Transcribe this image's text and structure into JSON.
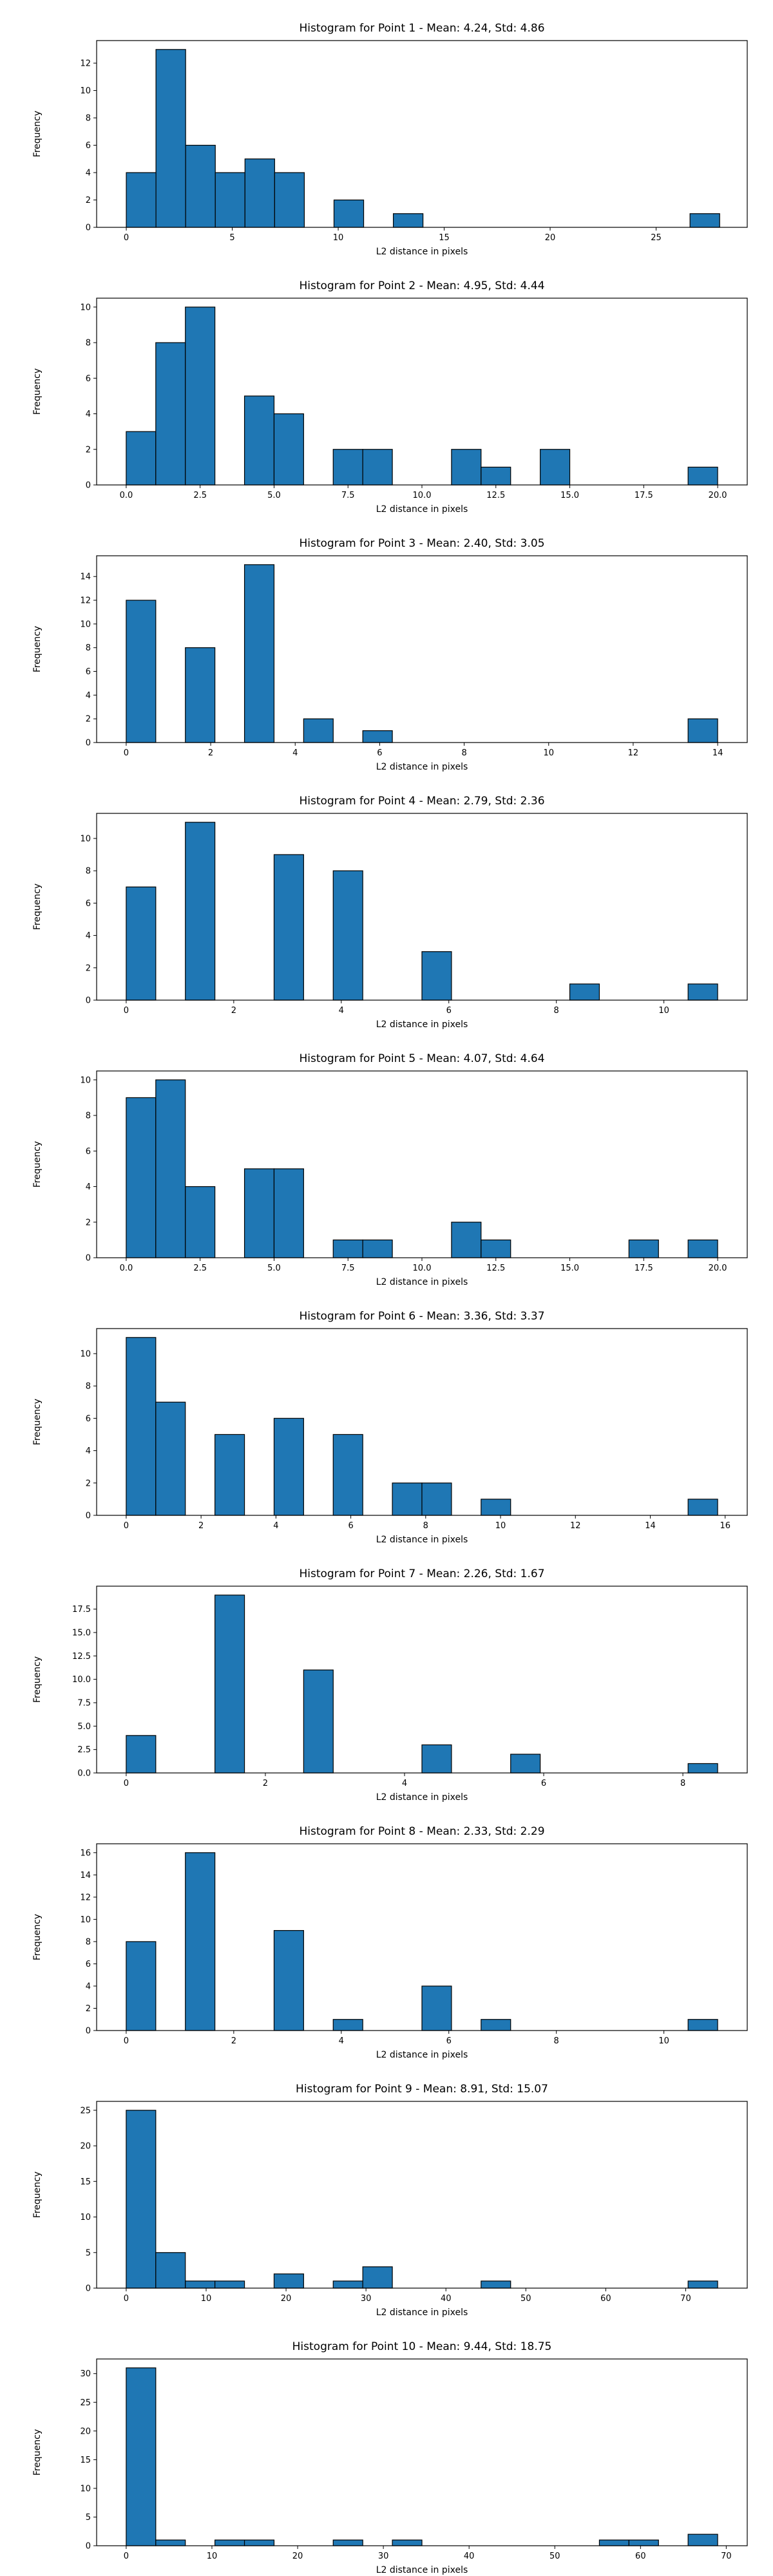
{
  "chart_data": [
    {
      "type": "histogram",
      "title": "Histogram for Point 1 - Mean: 4.24, Std: 4.86",
      "xlabel": "L2 distance in pixels",
      "ylabel": "Frequency",
      "bar_color": "#1f77b4",
      "edge_color": "#000000",
      "grid": false,
      "xlim": [
        -1.4,
        29.3
      ],
      "ylim": [
        0,
        13.65
      ],
      "x_ticks": [
        0,
        5,
        10,
        15,
        20,
        25
      ],
      "x_tick_labels": [
        "0",
        "5",
        "10",
        "15",
        "20",
        "25"
      ],
      "y_ticks": [
        0,
        2,
        4,
        6,
        8,
        10,
        12
      ],
      "y_tick_labels": [
        "0",
        "2",
        "4",
        "6",
        "8",
        "10",
        "12"
      ],
      "bins": [
        {
          "x0": 0.0,
          "x1": 1.4,
          "count": 4
        },
        {
          "x0": 1.4,
          "x1": 2.8,
          "count": 13
        },
        {
          "x0": 2.8,
          "x1": 4.2,
          "count": 6
        },
        {
          "x0": 4.2,
          "x1": 5.6,
          "count": 4
        },
        {
          "x0": 5.6,
          "x1": 7.0,
          "count": 5
        },
        {
          "x0": 7.0,
          "x1": 8.4,
          "count": 4
        },
        {
          "x0": 9.8,
          "x1": 11.2,
          "count": 2
        },
        {
          "x0": 12.6,
          "x1": 14.0,
          "count": 1
        },
        {
          "x0": 26.6,
          "x1": 28.0,
          "count": 1
        }
      ]
    },
    {
      "type": "histogram",
      "title": "Histogram for Point 2 - Mean: 4.95, Std: 4.44",
      "xlabel": "L2 distance in pixels",
      "ylabel": "Frequency",
      "bar_color": "#1f77b4",
      "edge_color": "#000000",
      "grid": false,
      "xlim": [
        -1.0,
        21.0
      ],
      "ylim": [
        0,
        10.5
      ],
      "x_ticks": [
        0,
        2.5,
        5,
        7.5,
        10,
        12.5,
        15,
        17.5,
        20
      ],
      "x_tick_labels": [
        "0.0",
        "2.5",
        "5.0",
        "7.5",
        "10.0",
        "12.5",
        "15.0",
        "17.5",
        "20.0"
      ],
      "y_ticks": [
        0,
        2,
        4,
        6,
        8,
        10
      ],
      "y_tick_labels": [
        "0",
        "2",
        "4",
        "6",
        "8",
        "10"
      ],
      "bins": [
        {
          "x0": 0.0,
          "x1": 1.0,
          "count": 3
        },
        {
          "x0": 1.0,
          "x1": 2.0,
          "count": 8
        },
        {
          "x0": 2.0,
          "x1": 3.0,
          "count": 10
        },
        {
          "x0": 4.0,
          "x1": 5.0,
          "count": 5
        },
        {
          "x0": 5.0,
          "x1": 6.0,
          "count": 4
        },
        {
          "x0": 7.0,
          "x1": 8.0,
          "count": 2
        },
        {
          "x0": 8.0,
          "x1": 9.0,
          "count": 2
        },
        {
          "x0": 11.0,
          "x1": 12.0,
          "count": 2
        },
        {
          "x0": 12.0,
          "x1": 13.0,
          "count": 1
        },
        {
          "x0": 14.0,
          "x1": 15.0,
          "count": 2
        },
        {
          "x0": 19.0,
          "x1": 20.0,
          "count": 1
        }
      ]
    },
    {
      "type": "histogram",
      "title": "Histogram for Point 3 - Mean: 2.40, Std: 3.05",
      "xlabel": "L2 distance in pixels",
      "ylabel": "Frequency",
      "bar_color": "#1f77b4",
      "edge_color": "#000000",
      "grid": false,
      "xlim": [
        -0.7,
        14.7
      ],
      "ylim": [
        0,
        15.75
      ],
      "x_ticks": [
        0,
        2,
        4,
        6,
        8,
        10,
        12,
        14
      ],
      "x_tick_labels": [
        "0",
        "2",
        "4",
        "6",
        "8",
        "10",
        "12",
        "14"
      ],
      "y_ticks": [
        0,
        2,
        4,
        6,
        8,
        10,
        12,
        14
      ],
      "y_tick_labels": [
        "0",
        "2",
        "4",
        "6",
        "8",
        "10",
        "12",
        "14"
      ],
      "bins": [
        {
          "x0": 0.0,
          "x1": 0.7,
          "count": 12
        },
        {
          "x0": 1.4,
          "x1": 2.1,
          "count": 8
        },
        {
          "x0": 2.8,
          "x1": 3.5,
          "count": 15
        },
        {
          "x0": 4.2,
          "x1": 4.9,
          "count": 2
        },
        {
          "x0": 5.6,
          "x1": 6.3,
          "count": 1
        },
        {
          "x0": 13.3,
          "x1": 14.0,
          "count": 2
        }
      ]
    },
    {
      "type": "histogram",
      "title": "Histogram for Point 4 - Mean: 2.79, Std: 2.36",
      "xlabel": "L2 distance in pixels",
      "ylabel": "Frequency",
      "bar_color": "#1f77b4",
      "edge_color": "#000000",
      "grid": false,
      "xlim": [
        -0.55,
        11.55
      ],
      "ylim": [
        0,
        11.55
      ],
      "x_ticks": [
        0,
        2,
        4,
        6,
        8,
        10
      ],
      "x_tick_labels": [
        "0",
        "2",
        "4",
        "6",
        "8",
        "10"
      ],
      "y_ticks": [
        0,
        2,
        4,
        6,
        8,
        10
      ],
      "y_tick_labels": [
        "0",
        "2",
        "4",
        "6",
        "8",
        "10"
      ],
      "bins": [
        {
          "x0": 0.0,
          "x1": 0.55,
          "count": 7
        },
        {
          "x0": 1.1,
          "x1": 1.65,
          "count": 11
        },
        {
          "x0": 2.75,
          "x1": 3.3,
          "count": 9
        },
        {
          "x0": 3.85,
          "x1": 4.4,
          "count": 8
        },
        {
          "x0": 5.5,
          "x1": 6.05,
          "count": 3
        },
        {
          "x0": 8.25,
          "x1": 8.8,
          "count": 1
        },
        {
          "x0": 10.45,
          "x1": 11.0,
          "count": 1
        }
      ]
    },
    {
      "type": "histogram",
      "title": "Histogram for Point 5 - Mean: 4.07, Std: 4.64",
      "xlabel": "L2 distance in pixels",
      "ylabel": "Frequency",
      "bar_color": "#1f77b4",
      "edge_color": "#000000",
      "grid": false,
      "xlim": [
        -1.0,
        21.0
      ],
      "ylim": [
        0,
        10.5
      ],
      "x_ticks": [
        0,
        2.5,
        5,
        7.5,
        10,
        12.5,
        15,
        17.5,
        20
      ],
      "x_tick_labels": [
        "0.0",
        "2.5",
        "5.0",
        "7.5",
        "10.0",
        "12.5",
        "15.0",
        "17.5",
        "20.0"
      ],
      "y_ticks": [
        0,
        2,
        4,
        6,
        8,
        10
      ],
      "y_tick_labels": [
        "0",
        "2",
        "4",
        "6",
        "8",
        "10"
      ],
      "bins": [
        {
          "x0": 0.0,
          "x1": 1.0,
          "count": 9
        },
        {
          "x0": 1.0,
          "x1": 2.0,
          "count": 10
        },
        {
          "x0": 2.0,
          "x1": 3.0,
          "count": 4
        },
        {
          "x0": 4.0,
          "x1": 5.0,
          "count": 5
        },
        {
          "x0": 5.0,
          "x1": 6.0,
          "count": 5
        },
        {
          "x0": 7.0,
          "x1": 8.0,
          "count": 1
        },
        {
          "x0": 8.0,
          "x1": 9.0,
          "count": 1
        },
        {
          "x0": 11.0,
          "x1": 12.0,
          "count": 2
        },
        {
          "x0": 12.0,
          "x1": 13.0,
          "count": 1
        },
        {
          "x0": 17.0,
          "x1": 18.0,
          "count": 1
        },
        {
          "x0": 19.0,
          "x1": 20.0,
          "count": 1
        }
      ]
    },
    {
      "type": "histogram",
      "title": "Histogram for Point 6 - Mean: 3.36, Std: 3.37",
      "xlabel": "L2 distance in pixels",
      "ylabel": "Frequency",
      "bar_color": "#1f77b4",
      "edge_color": "#000000",
      "grid": false,
      "xlim": [
        -0.79,
        16.59
      ],
      "ylim": [
        0,
        11.55
      ],
      "x_ticks": [
        0,
        2,
        4,
        6,
        8,
        10,
        12,
        14,
        16
      ],
      "x_tick_labels": [
        "0",
        "2",
        "4",
        "6",
        "8",
        "10",
        "12",
        "14",
        "16"
      ],
      "y_ticks": [
        0,
        2,
        4,
        6,
        8,
        10
      ],
      "y_tick_labels": [
        "0",
        "2",
        "4",
        "6",
        "8",
        "10"
      ],
      "bins": [
        {
          "x0": 0.0,
          "x1": 0.79,
          "count": 11
        },
        {
          "x0": 0.79,
          "x1": 1.58,
          "count": 7
        },
        {
          "x0": 2.37,
          "x1": 3.16,
          "count": 5
        },
        {
          "x0": 3.95,
          "x1": 4.74,
          "count": 6
        },
        {
          "x0": 5.53,
          "x1": 6.32,
          "count": 5
        },
        {
          "x0": 7.11,
          "x1": 7.9,
          "count": 2
        },
        {
          "x0": 7.9,
          "x1": 8.69,
          "count": 2
        },
        {
          "x0": 9.48,
          "x1": 10.27,
          "count": 1
        },
        {
          "x0": 15.01,
          "x1": 15.8,
          "count": 1
        }
      ]
    },
    {
      "type": "histogram",
      "title": "Histogram for Point 7 - Mean: 2.26, Std: 1.67",
      "xlabel": "L2 distance in pixels",
      "ylabel": "Frequency",
      "bar_color": "#1f77b4",
      "edge_color": "#000000",
      "grid": false,
      "xlim": [
        -0.425,
        8.925
      ],
      "ylim": [
        0,
        19.95
      ],
      "x_ticks": [
        0,
        2,
        4,
        6,
        8
      ],
      "x_tick_labels": [
        "0",
        "2",
        "4",
        "6",
        "8"
      ],
      "y_ticks": [
        0,
        2.5,
        5,
        7.5,
        10,
        12.5,
        15,
        17.5
      ],
      "y_tick_labels": [
        "0.0",
        "2.5",
        "5.0",
        "7.5",
        "10.0",
        "12.5",
        "15.0",
        "17.5"
      ],
      "bins": [
        {
          "x0": 0.0,
          "x1": 0.425,
          "count": 4
        },
        {
          "x0": 1.275,
          "x1": 1.7,
          "count": 19
        },
        {
          "x0": 2.55,
          "x1": 2.975,
          "count": 11
        },
        {
          "x0": 4.25,
          "x1": 4.675,
          "count": 3
        },
        {
          "x0": 5.525,
          "x1": 5.95,
          "count": 2
        },
        {
          "x0": 8.075,
          "x1": 8.5,
          "count": 1
        }
      ]
    },
    {
      "type": "histogram",
      "title": "Histogram for Point 8 - Mean: 2.33, Std: 2.29",
      "xlabel": "L2 distance in pixels",
      "ylabel": "Frequency",
      "bar_color": "#1f77b4",
      "edge_color": "#000000",
      "grid": false,
      "xlim": [
        -0.55,
        11.55
      ],
      "ylim": [
        0,
        16.8
      ],
      "x_ticks": [
        0,
        2,
        4,
        6,
        8,
        10
      ],
      "x_tick_labels": [
        "0",
        "2",
        "4",
        "6",
        "8",
        "10"
      ],
      "y_ticks": [
        0,
        2,
        4,
        6,
        8,
        10,
        12,
        14,
        16
      ],
      "y_tick_labels": [
        "0",
        "2",
        "4",
        "6",
        "8",
        "10",
        "12",
        "14",
        "16"
      ],
      "bins": [
        {
          "x0": 0.0,
          "x1": 0.55,
          "count": 8
        },
        {
          "x0": 1.1,
          "x1": 1.65,
          "count": 16
        },
        {
          "x0": 2.75,
          "x1": 3.3,
          "count": 9
        },
        {
          "x0": 3.85,
          "x1": 4.4,
          "count": 1
        },
        {
          "x0": 5.5,
          "x1": 6.05,
          "count": 4
        },
        {
          "x0": 6.6,
          "x1": 7.15,
          "count": 1
        },
        {
          "x0": 10.45,
          "x1": 11.0,
          "count": 1
        }
      ]
    },
    {
      "type": "histogram",
      "title": "Histogram for Point 9 - Mean: 8.91, Std: 15.07",
      "xlabel": "L2 distance in pixels",
      "ylabel": "Frequency",
      "bar_color": "#1f77b4",
      "edge_color": "#000000",
      "grid": false,
      "xlim": [
        -3.7,
        77.7
      ],
      "ylim": [
        0,
        26.25
      ],
      "x_ticks": [
        0,
        10,
        20,
        30,
        40,
        50,
        60,
        70
      ],
      "x_tick_labels": [
        "0",
        "10",
        "20",
        "30",
        "40",
        "50",
        "60",
        "70"
      ],
      "y_ticks": [
        0,
        5,
        10,
        15,
        20,
        25
      ],
      "y_tick_labels": [
        "0",
        "5",
        "10",
        "15",
        "20",
        "25"
      ],
      "bins": [
        {
          "x0": 0.0,
          "x1": 3.7,
          "count": 25
        },
        {
          "x0": 3.7,
          "x1": 7.4,
          "count": 5
        },
        {
          "x0": 7.4,
          "x1": 11.1,
          "count": 1
        },
        {
          "x0": 11.1,
          "x1": 14.8,
          "count": 1
        },
        {
          "x0": 18.5,
          "x1": 22.2,
          "count": 2
        },
        {
          "x0": 25.9,
          "x1": 29.6,
          "count": 1
        },
        {
          "x0": 29.6,
          "x1": 33.3,
          "count": 3
        },
        {
          "x0": 44.4,
          "x1": 48.1,
          "count": 1
        },
        {
          "x0": 70.3,
          "x1": 74.0,
          "count": 1
        }
      ]
    },
    {
      "type": "histogram",
      "title": "Histogram for Point 10 - Mean: 9.44, Std: 18.75",
      "xlabel": "L2 distance in pixels",
      "ylabel": "Frequency",
      "bar_color": "#1f77b4",
      "edge_color": "#000000",
      "grid": false,
      "xlim": [
        -3.45,
        72.45
      ],
      "ylim": [
        0,
        32.55
      ],
      "x_ticks": [
        0,
        10,
        20,
        30,
        40,
        50,
        60,
        70
      ],
      "x_tick_labels": [
        "0",
        "10",
        "20",
        "30",
        "40",
        "50",
        "60",
        "70"
      ],
      "y_ticks": [
        0,
        5,
        10,
        15,
        20,
        25,
        30
      ],
      "y_tick_labels": [
        "0",
        "5",
        "10",
        "15",
        "20",
        "25",
        "30"
      ],
      "bins": [
        {
          "x0": 0.0,
          "x1": 3.45,
          "count": 31
        },
        {
          "x0": 3.45,
          "x1": 6.9,
          "count": 1
        },
        {
          "x0": 10.35,
          "x1": 13.8,
          "count": 1
        },
        {
          "x0": 13.8,
          "x1": 17.25,
          "count": 1
        },
        {
          "x0": 24.15,
          "x1": 27.6,
          "count": 1
        },
        {
          "x0": 31.05,
          "x1": 34.5,
          "count": 1
        },
        {
          "x0": 55.2,
          "x1": 58.65,
          "count": 1
        },
        {
          "x0": 58.65,
          "x1": 62.1,
          "count": 1
        },
        {
          "x0": 65.55,
          "x1": 69.0,
          "count": 2
        }
      ]
    }
  ]
}
